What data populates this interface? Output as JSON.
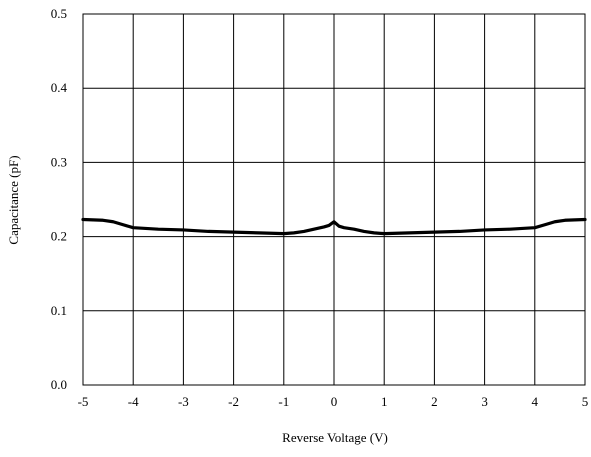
{
  "chart_data": {
    "type": "line",
    "title": "",
    "xlabel": "Reverse Voltage (V)",
    "ylabel": "Capacitance (pF)",
    "xlim": [
      -5,
      5
    ],
    "ylim": [
      0.0,
      0.5
    ],
    "x_ticks": [
      "-5",
      "-4",
      "-3",
      "-2",
      "-1",
      "0",
      "1",
      "2",
      "3",
      "4",
      "5"
    ],
    "y_ticks": [
      "0.0",
      "0.1",
      "0.2",
      "0.3",
      "0.4",
      "0.5"
    ],
    "grid": true,
    "legend": "none",
    "series": [
      {
        "color": "#000000",
        "x": [
          -5,
          -4.6,
          -4.4,
          -4.2,
          -4.0,
          -3.5,
          -3,
          -2.5,
          -2,
          -1.5,
          -1,
          -0.8,
          -0.6,
          -0.4,
          -0.2,
          -0.1,
          0,
          0.1,
          0.2,
          0.4,
          0.6,
          0.8,
          1,
          1.5,
          2,
          2.5,
          3,
          3.5,
          4.0,
          4.2,
          4.4,
          4.6,
          5
        ],
        "y": [
          0.223,
          0.222,
          0.22,
          0.216,
          0.212,
          0.21,
          0.209,
          0.207,
          0.206,
          0.205,
          0.204,
          0.205,
          0.207,
          0.21,
          0.213,
          0.215,
          0.22,
          0.214,
          0.212,
          0.21,
          0.207,
          0.205,
          0.204,
          0.205,
          0.206,
          0.207,
          0.209,
          0.21,
          0.212,
          0.216,
          0.22,
          0.222,
          0.223
        ]
      }
    ]
  }
}
